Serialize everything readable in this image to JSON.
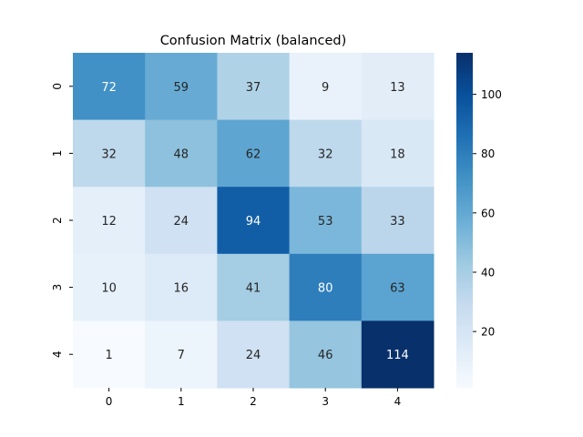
{
  "chart_data": {
    "type": "heatmap",
    "title": "Confusion Matrix (balanced)",
    "xlabel": "",
    "ylabel": "",
    "x_categories": [
      "0",
      "1",
      "2",
      "3",
      "4"
    ],
    "y_categories": [
      "0",
      "1",
      "2",
      "3",
      "4"
    ],
    "values": [
      [
        72,
        59,
        37,
        9,
        13
      ],
      [
        32,
        48,
        62,
        32,
        18
      ],
      [
        12,
        24,
        94,
        53,
        33
      ],
      [
        10,
        16,
        41,
        80,
        63
      ],
      [
        1,
        7,
        24,
        46,
        114
      ]
    ],
    "colormap": "Blues",
    "color_range": [
      1,
      114
    ],
    "colorbar": {
      "ticks": [
        20,
        40,
        60,
        80,
        100
      ],
      "placement": "right"
    },
    "grid": false,
    "annotations": true
  }
}
